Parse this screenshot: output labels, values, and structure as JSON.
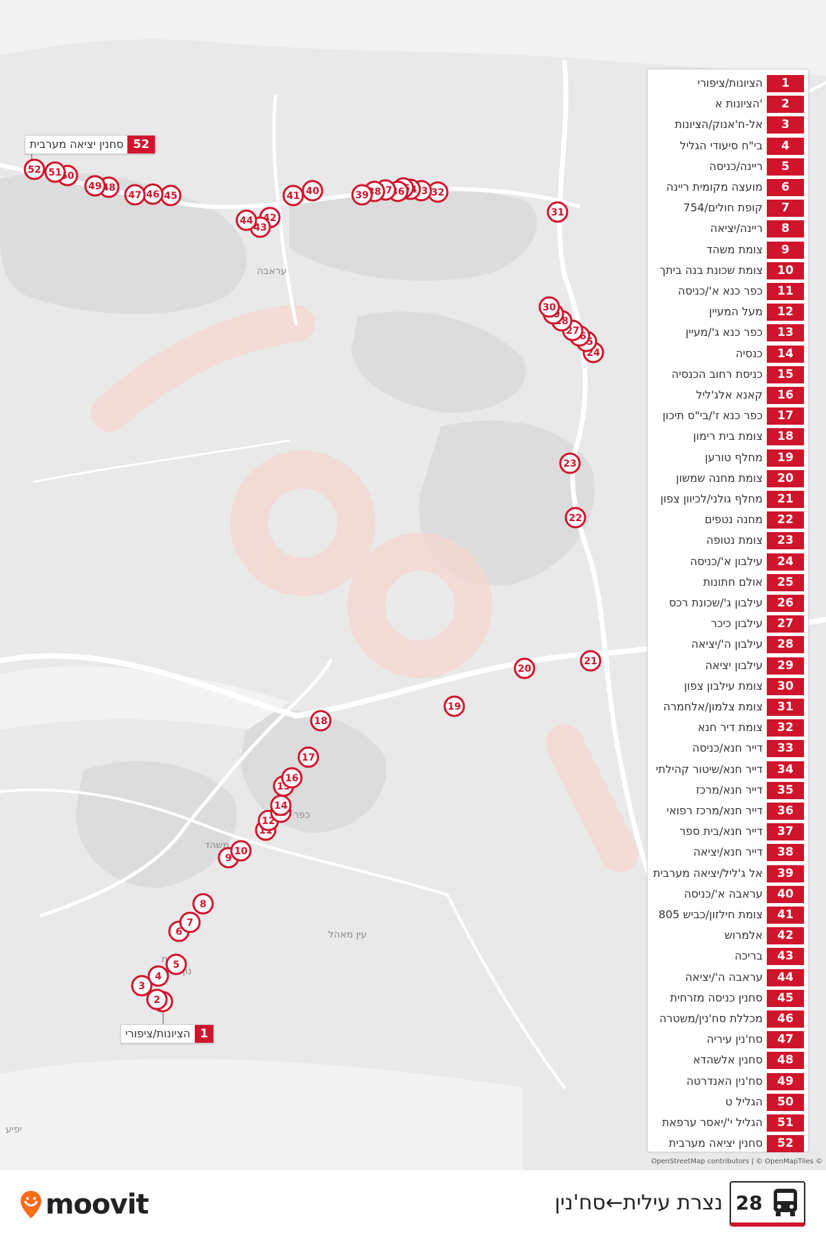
{
  "route": {
    "number": "28",
    "title": "נצרת עילית←סח'נין"
  },
  "brand": {
    "name": "moovit",
    "color": "#ff6b17"
  },
  "attribution": "OpenStreetMap contributors | © OpenMapTiles ©",
  "accent_color": "#d0142b",
  "first_stop_callout": {
    "num": "1",
    "name": "הציונות/ציפורי"
  },
  "last_stop_callout": {
    "num": "52",
    "name": "סחנין יציאה מערבית"
  },
  "map_labels": [
    "עין מאהל",
    "נוף הגליל",
    "נצרת",
    "כפר כנא",
    "עראבה",
    "משהד",
    "יפיע"
  ],
  "stops": [
    {
      "num": "1",
      "name": "הציונות/ציפורי"
    },
    {
      "num": "2",
      "name": "'הציונות א"
    },
    {
      "num": "3",
      "name": "אל-ח'אנוק/הציונות"
    },
    {
      "num": "4",
      "name": "בי\"ח סיעודי הגליל"
    },
    {
      "num": "5",
      "name": "ריינה/כניסה"
    },
    {
      "num": "6",
      "name": "מועצה מקומית ריינה"
    },
    {
      "num": "7",
      "name": "קופת חולים/754"
    },
    {
      "num": "8",
      "name": "ריינה/יציאה"
    },
    {
      "num": "9",
      "name": "צומת משהד"
    },
    {
      "num": "10",
      "name": "צומת שכונת בנה ביתך"
    },
    {
      "num": "11",
      "name": "כפר כנא א'/כניסה"
    },
    {
      "num": "12",
      "name": "מעל המעיין"
    },
    {
      "num": "13",
      "name": "כפר כנא ג'/מעיין"
    },
    {
      "num": "14",
      "name": "כנסיה"
    },
    {
      "num": "15",
      "name": "כניסת רחוב הכנסיה"
    },
    {
      "num": "16",
      "name": "קאנא אלג'ליל"
    },
    {
      "num": "17",
      "name": "כפר כנא ז'/בי\"ס תיכון"
    },
    {
      "num": "18",
      "name": "צומת בית רימון"
    },
    {
      "num": "19",
      "name": "מחלף טורען"
    },
    {
      "num": "20",
      "name": "צומת מחנה שמשון"
    },
    {
      "num": "21",
      "name": "מחלף גולני/לכיוון צפון"
    },
    {
      "num": "22",
      "name": "מחנה נטפים"
    },
    {
      "num": "23",
      "name": "צומת נטופה"
    },
    {
      "num": "24",
      "name": "עילבון א'/כניסה"
    },
    {
      "num": "25",
      "name": "אולם חתונות"
    },
    {
      "num": "26",
      "name": "עילבון ג'/שכונת רכס"
    },
    {
      "num": "27",
      "name": "עילבון כיכר"
    },
    {
      "num": "28",
      "name": "עילבון ה'/יציאה"
    },
    {
      "num": "29",
      "name": "עילבון יציאה"
    },
    {
      "num": "30",
      "name": "צומת עילבון צפון"
    },
    {
      "num": "31",
      "name": "צומת צלמון/אלחמרה"
    },
    {
      "num": "32",
      "name": "צומת דיר חנא"
    },
    {
      "num": "33",
      "name": "דייר חנא/כניסה"
    },
    {
      "num": "34",
      "name": "דייר חנא/שיטור קהילתי"
    },
    {
      "num": "35",
      "name": "דייר חנא/מרכז"
    },
    {
      "num": "36",
      "name": "דייר חנא/מרכז רפואי"
    },
    {
      "num": "37",
      "name": "דייר חנא/בית ספר"
    },
    {
      "num": "38",
      "name": "דייר חנא/יציאה"
    },
    {
      "num": "39",
      "name": "אל ג'ליל/יציאה מערבית"
    },
    {
      "num": "40",
      "name": "עראבה א'/כניסה"
    },
    {
      "num": "41",
      "name": "צומת חילזון/כביש 805"
    },
    {
      "num": "42",
      "name": "אלמרוש"
    },
    {
      "num": "43",
      "name": "בריכה"
    },
    {
      "num": "44",
      "name": "עראבה ה'/יציאה"
    },
    {
      "num": "45",
      "name": "סחנין כניסה מזרחית"
    },
    {
      "num": "46",
      "name": "מכללת סח'נין/משטרה"
    },
    {
      "num": "47",
      "name": "סח'נין עיריה"
    },
    {
      "num": "48",
      "name": "סחנין אלשהדא"
    },
    {
      "num": "49",
      "name": "סח'נין האנדרטה"
    },
    {
      "num": "50",
      "name": "הגליל ט"
    },
    {
      "num": "51",
      "name": "הגליל י'/יאסר ערפאת"
    },
    {
      "num": "52",
      "name": "סחנין יציאה מערבית"
    }
  ]
}
